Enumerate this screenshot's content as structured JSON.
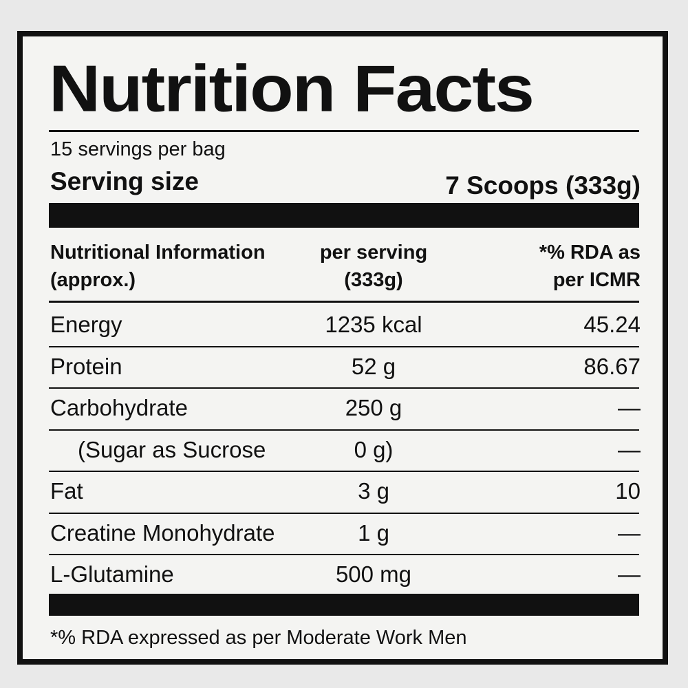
{
  "label": {
    "title": "Nutrition Facts",
    "servings": "15 servings per bag",
    "serving_size_label": "Serving size",
    "serving_size_value": "7 Scoops (333g)",
    "header": [
      "Nutritional Information (approx.)",
      "per serving (333g)",
      "*% RDA as per ICMR"
    ],
    "rows": [
      [
        "Energy",
        "1235 kcal",
        "45.24"
      ],
      [
        "Protein",
        "52 g",
        "86.67"
      ],
      [
        "Carbohydrate",
        "250 g",
        "—"
      ],
      [
        "(Sugar as Sucrose",
        "0 g)",
        "—"
      ],
      [
        "Fat",
        "3 g",
        "10"
      ],
      [
        "Creatine Monohydrate",
        "1 g",
        "—"
      ],
      [
        "L-Glutamine",
        "500 mg",
        "—"
      ]
    ],
    "footnote": "*% RDA expressed as per Moderate Work Men"
  }
}
